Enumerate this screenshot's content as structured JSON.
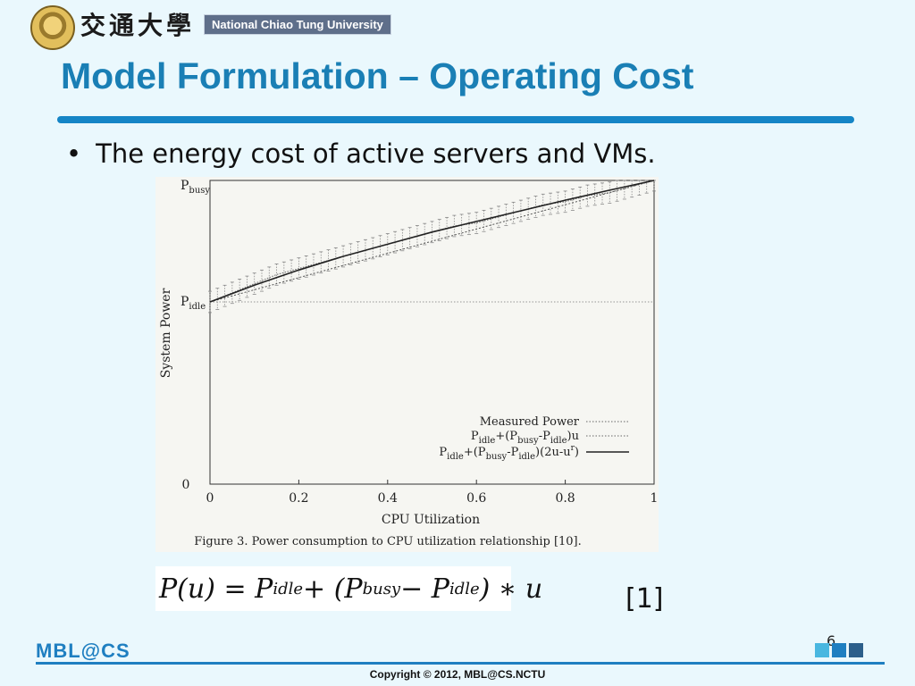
{
  "header": {
    "university_cn": "交通大學",
    "university_en": "National Chiao Tung University"
  },
  "slide": {
    "title": "Model Formulation – Operating Cost",
    "bullet": "The energy cost of active servers and VMs.",
    "citation": "[1]",
    "page_number": "6"
  },
  "formula": {
    "lhs": "P(u) = P",
    "idle1": "idle",
    "mid": " + (P",
    "busy": "busy",
    "minus": " − P",
    "idle2": "idle",
    "rhs": ") ∗ u"
  },
  "footer": {
    "logo": "MBL@CS",
    "copyright": "Copyright © 2012, MBL@CS.NCTU",
    "square_colors": [
      "#49b7e0",
      "#1f7fc1",
      "#2c5f8a"
    ]
  },
  "colors": {
    "title": "#1a7fb5",
    "rule": "#1585c6",
    "background": "#eaf8fd"
  },
  "chart_data": {
    "type": "line",
    "caption": "Figure 3. Power consumption to CPU utilization relationship [10].",
    "xlabel": "CPU Utilization",
    "ylabel": "System Power",
    "xlim": [
      0,
      1
    ],
    "x_ticks": [
      "0",
      "0.2",
      "0.4",
      "0.6",
      "0.8",
      "1"
    ],
    "y_ticks": [
      {
        "label": "0",
        "value": 0
      },
      {
        "label": "P",
        "sub": "idle",
        "value": 0.6
      },
      {
        "label": "P",
        "sub": "busy",
        "value": 1.0
      }
    ],
    "legend_position": "bottom-right",
    "legend": [
      {
        "text": "Measured Power",
        "style": "dotted"
      },
      {
        "text": "P_idle+(P_busy-P_idle)u",
        "style": "dotted"
      },
      {
        "text": "P_idle+(P_busy-P_idle)(2u-u^r)",
        "style": "solid"
      }
    ],
    "series": [
      {
        "name": "Measured Power",
        "x": [
          0,
          0.05,
          0.1,
          0.15,
          0.2,
          0.25,
          0.3,
          0.35,
          0.4,
          0.45,
          0.5,
          0.55,
          0.6,
          0.65,
          0.7,
          0.75,
          0.8,
          0.85,
          0.9,
          0.95,
          1.0
        ],
        "y": [
          0.6,
          0.63,
          0.66,
          0.69,
          0.71,
          0.73,
          0.75,
          0.77,
          0.79,
          0.81,
          0.83,
          0.85,
          0.86,
          0.88,
          0.9,
          0.92,
          0.93,
          0.95,
          0.96,
          0.98,
          1.0
        ],
        "err": 0.035
      },
      {
        "name": "P_idle+(P_busy-P_idle)u",
        "x": [
          0,
          1
        ],
        "y": [
          0.6,
          1.0
        ]
      },
      {
        "name": "P_idle+(P_busy-P_idle)(2u-u^r)",
        "x": [
          0,
          0.1,
          0.2,
          0.3,
          0.4,
          0.5,
          0.6,
          0.7,
          0.8,
          0.9,
          1.0
        ],
        "y": [
          0.6,
          0.655,
          0.705,
          0.75,
          0.79,
          0.83,
          0.865,
          0.9,
          0.935,
          0.968,
          1.0
        ]
      }
    ]
  }
}
